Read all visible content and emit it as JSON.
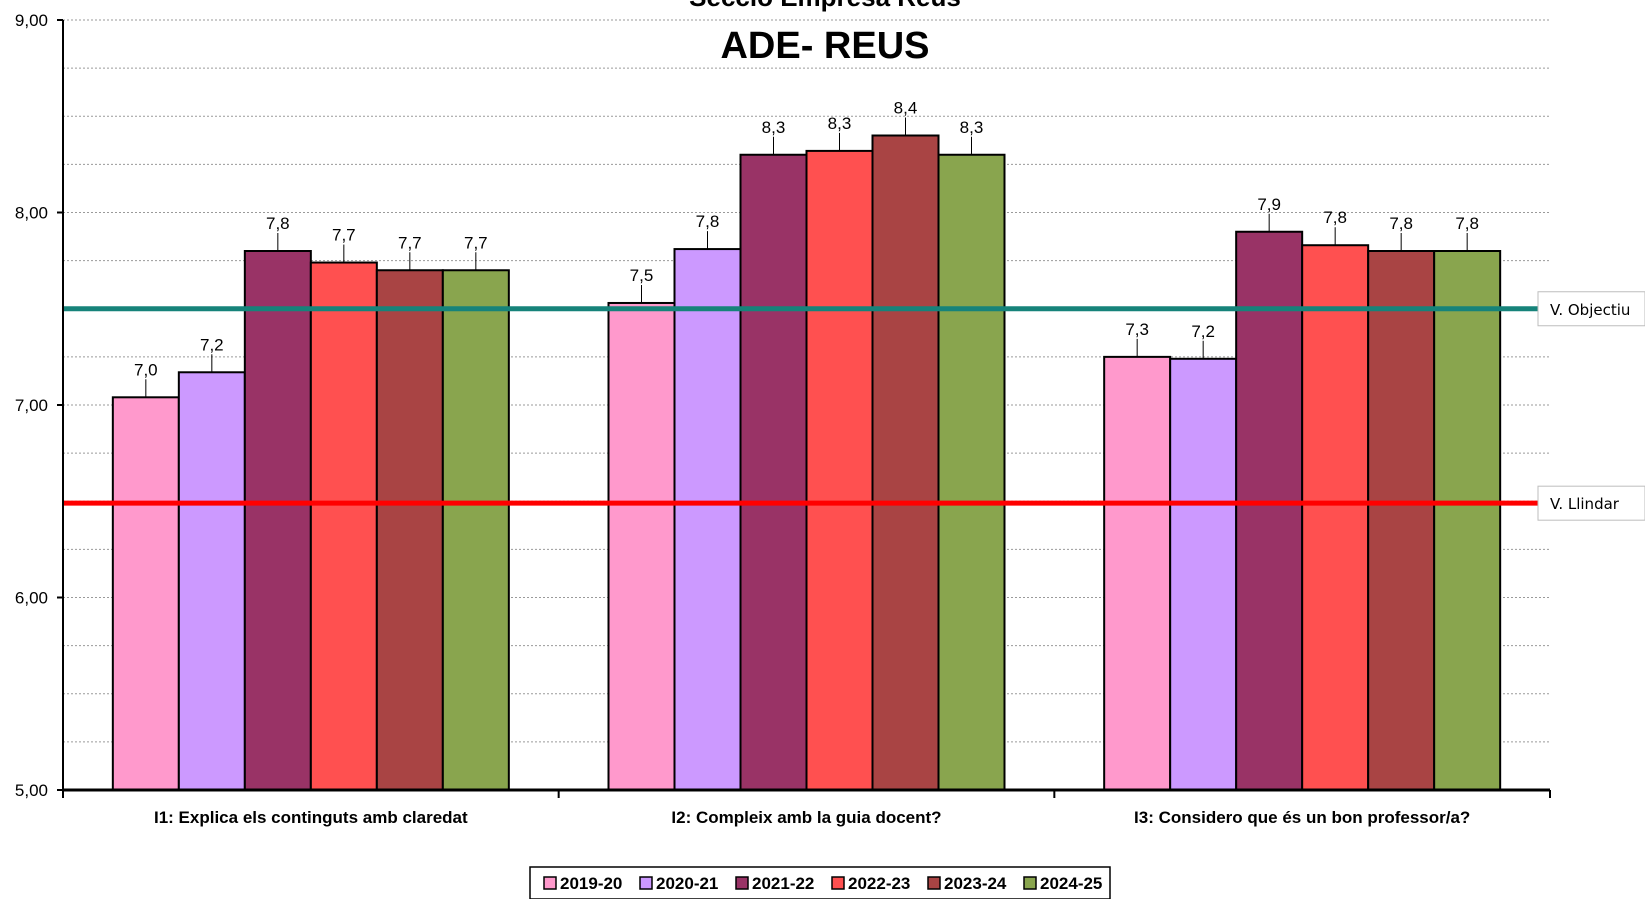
{
  "chart_data": {
    "type": "bar",
    "title": "ADE- REUS",
    "title_top_cropped": "Secció Empresa Reus",
    "categories": [
      "I1: Explica els continguts amb claredat",
      "I2: Compleix amb la guia docent?",
      "I3: Considero que és un bon professor/a?"
    ],
    "series": [
      {
        "name": "2019-20",
        "color": "#ff99cc",
        "values": [
          7.04,
          7.53,
          7.25
        ],
        "labels": [
          "7,0",
          "7,5",
          "7,3"
        ]
      },
      {
        "name": "2020-21",
        "color": "#cc99ff",
        "values": [
          7.17,
          7.81,
          7.24
        ],
        "labels": [
          "7,2",
          "7,8",
          "7,2"
        ]
      },
      {
        "name": "2021-22",
        "color": "#993366",
        "values": [
          7.8,
          8.3,
          7.9
        ],
        "labels": [
          "7,8",
          "8,3",
          "7,9"
        ]
      },
      {
        "name": "2022-23",
        "color": "#ff5050",
        "values": [
          7.74,
          8.32,
          7.83
        ],
        "labels": [
          "7,7",
          "8,3",
          "7,8"
        ]
      },
      {
        "name": "2023-24",
        "color": "#a94444",
        "values": [
          7.7,
          8.4,
          7.8
        ],
        "labels": [
          "7,7",
          "8,4",
          "7,8"
        ]
      },
      {
        "name": "2024-25",
        "color": "#89a54e",
        "values": [
          7.7,
          8.3,
          7.8
        ],
        "labels": [
          "7,7",
          "8,3",
          "7,8"
        ]
      }
    ],
    "ylim": [
      5,
      9
    ],
    "yticks": [
      {
        "value": 5,
        "label": "5,00"
      },
      {
        "value": 6,
        "label": "6,00"
      },
      {
        "value": 7,
        "label": "7,00"
      },
      {
        "value": 8,
        "label": "8,00"
      },
      {
        "value": 9,
        "label": "9,00"
      }
    ],
    "minor_grid_step": 0.25,
    "grid": true,
    "reference_lines": [
      {
        "name": "V. Objectiu",
        "value": 7.5,
        "color": "#16837a"
      },
      {
        "name": "V. Llindar",
        "value": 6.49,
        "color": "#ff0000"
      }
    ],
    "legend_position": "bottom"
  }
}
